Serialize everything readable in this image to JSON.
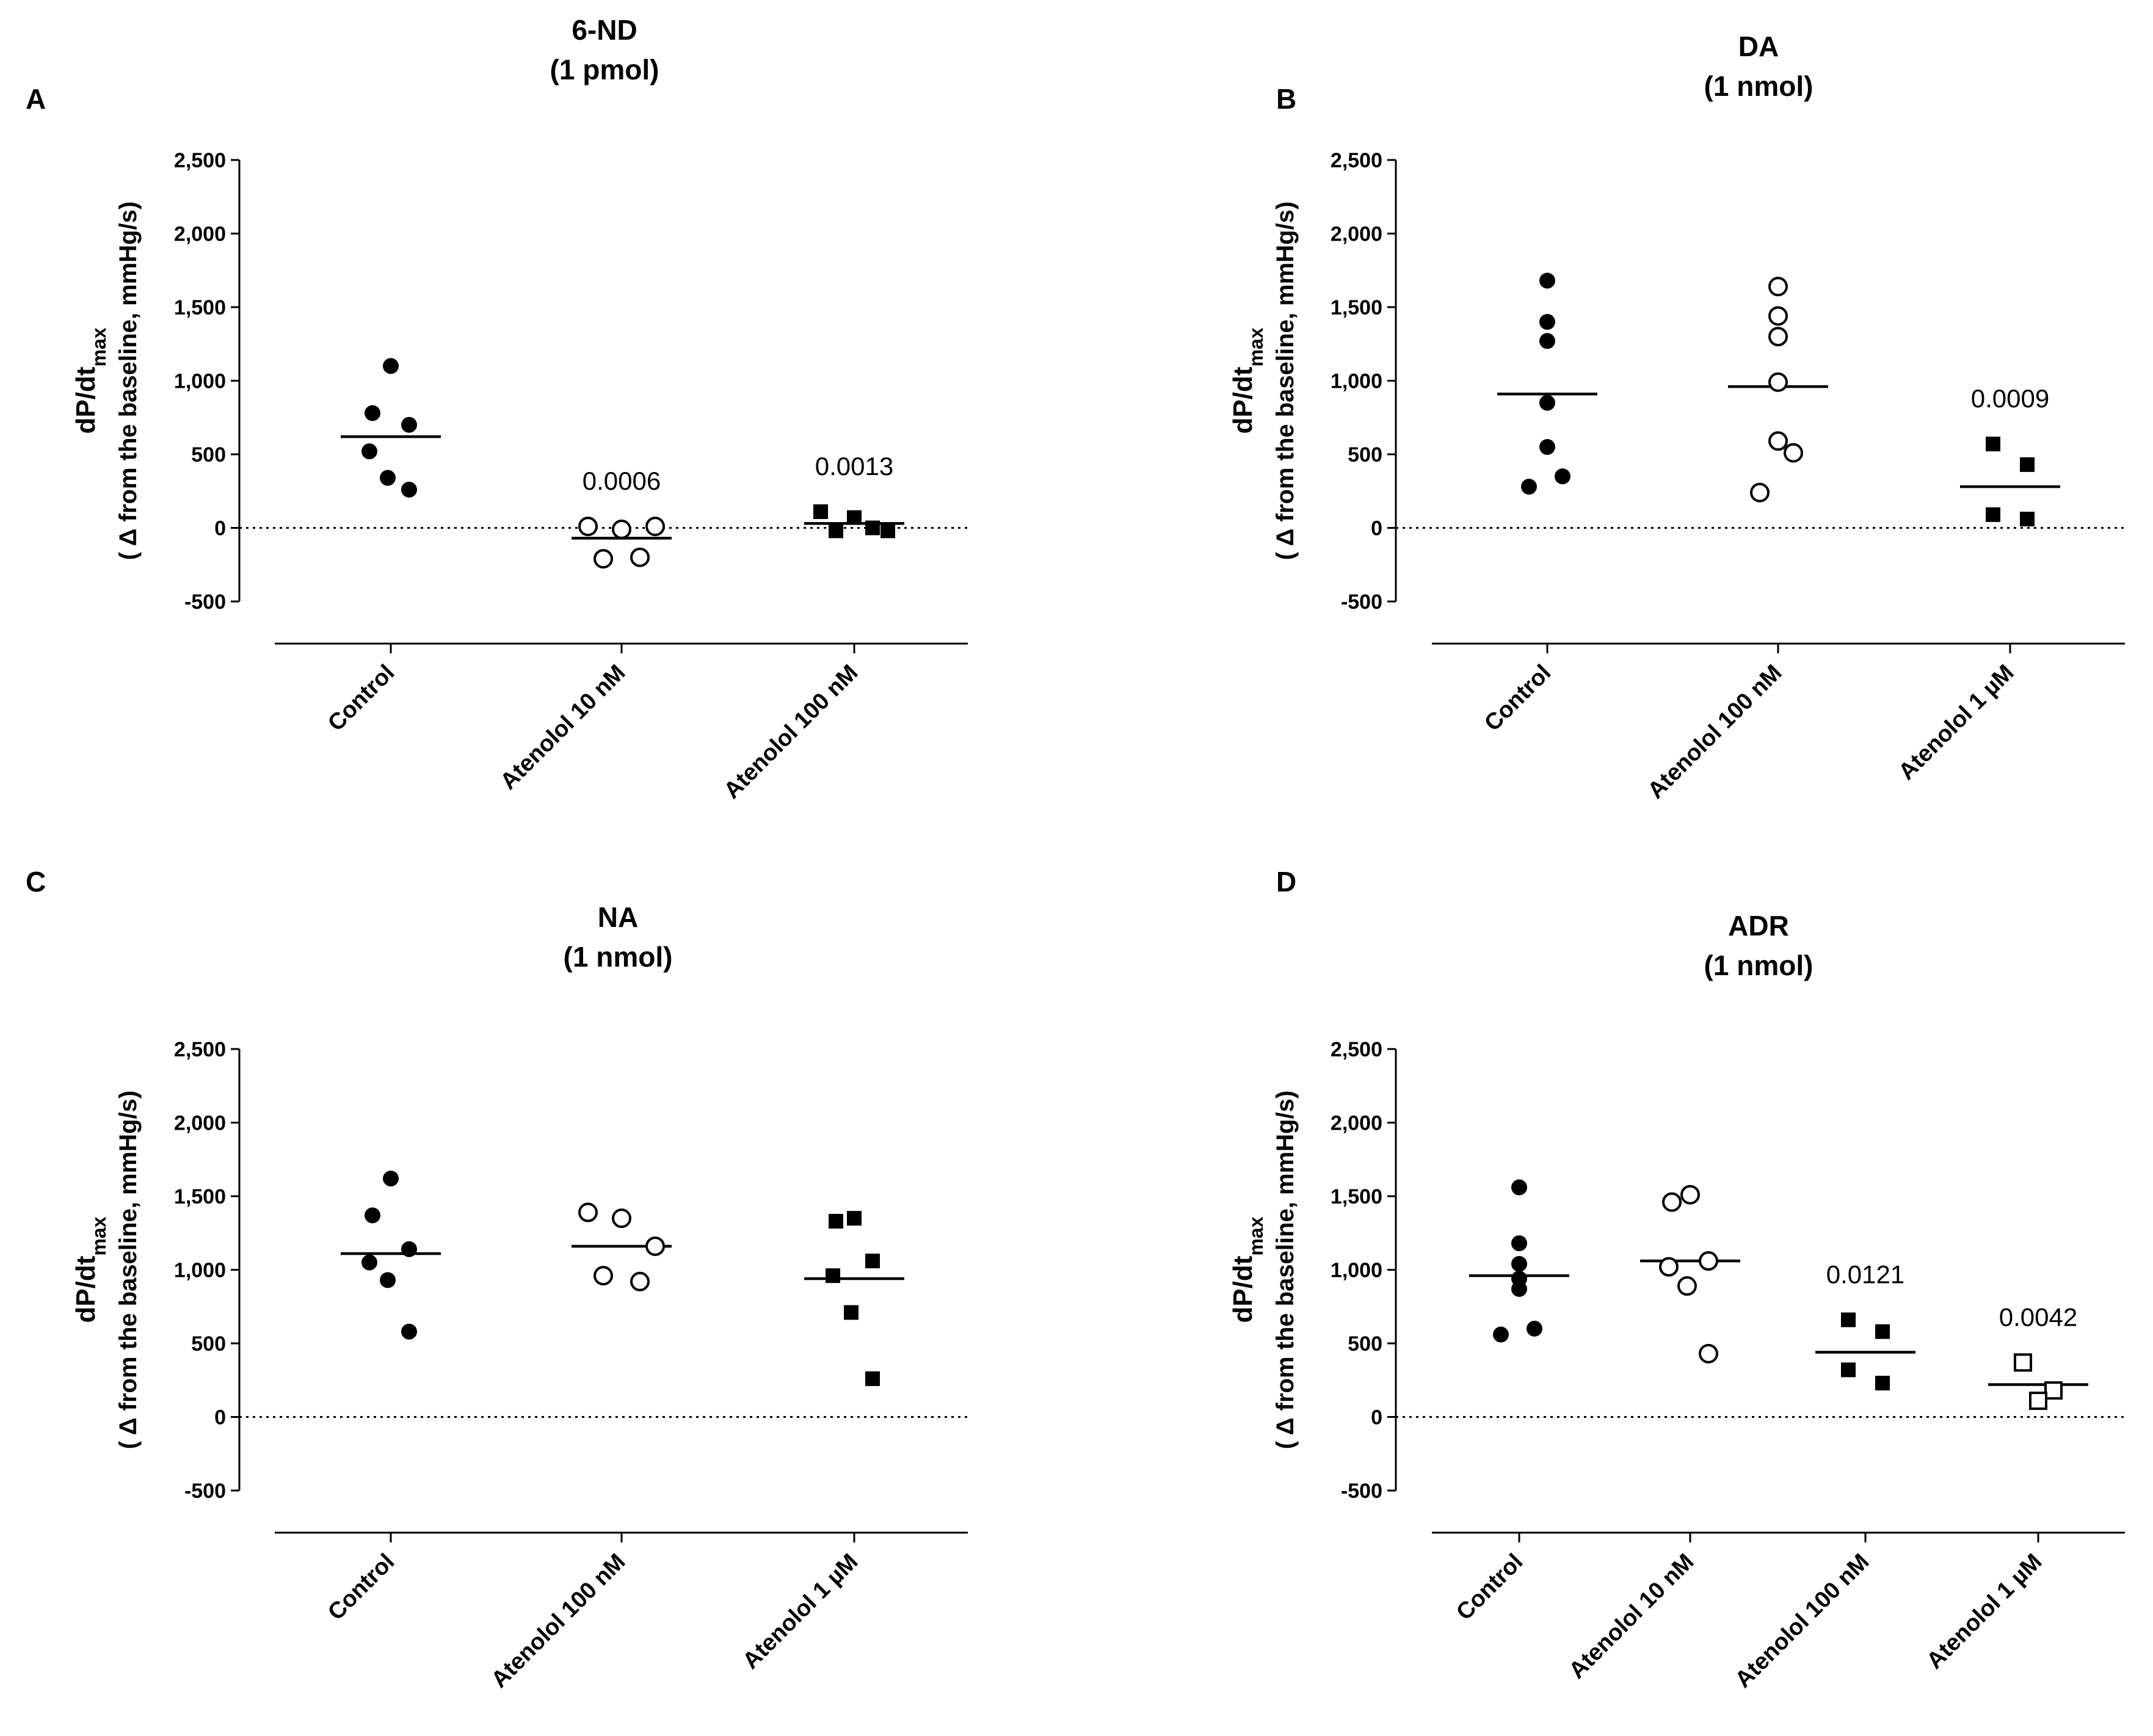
{
  "figure": {
    "background": "#ffffff",
    "marker_color": "#000000"
  },
  "chart_data": [
    {
      "panel": "A",
      "type": "scatter",
      "title": [
        "6-ND",
        "(1 pmol)"
      ],
      "ylabel": {
        "main": "dP/dt",
        "sub": "max",
        "line2": "( Δ from the baseline, mmHg/s)"
      },
      "ylim": [
        -500,
        2500
      ],
      "yticks": [
        -500,
        0,
        500,
        1000,
        1500,
        2000,
        2500
      ],
      "ytick_labels": [
        "-500",
        "0",
        "500",
        "1,000",
        "1,500",
        "2,000",
        "2,500"
      ],
      "reference_line": 0,
      "groups": [
        {
          "name": "Control",
          "marker": "filled-circle",
          "values": [
            1100,
            780,
            700,
            520,
            340,
            260
          ],
          "median": 620
        },
        {
          "name": "Atenolol 10 nM",
          "marker": "open-circle",
          "values": [
            10,
            -10,
            10,
            -210,
            -200
          ],
          "median": -70,
          "annotation": "0.0006"
        },
        {
          "name": "Atenolol 100 nM",
          "marker": "filled-square",
          "values": [
            110,
            70,
            -20,
            -20,
            0
          ],
          "median": 30,
          "annotation": "0.0013"
        }
      ]
    },
    {
      "panel": "B",
      "type": "scatter",
      "title": [
        "DA",
        "(1 nmol)"
      ],
      "ylabel": {
        "main": "dP/dt",
        "sub": "max",
        "line2": "( Δ from the baseline, mmHg/s)"
      },
      "ylim": [
        -500,
        2500
      ],
      "yticks": [
        -500,
        0,
        500,
        1000,
        1500,
        2000,
        2500
      ],
      "ytick_labels": [
        "-500",
        "0",
        "500",
        "1,000",
        "1,500",
        "2,000",
        "2,500"
      ],
      "reference_line": 0,
      "groups": [
        {
          "name": "Control",
          "marker": "filled-circle",
          "values": [
            1680,
            1400,
            1270,
            850,
            550,
            350,
            280
          ],
          "median": 910
        },
        {
          "name": "Atenolol 100 nM",
          "marker": "open-circle",
          "values": [
            1640,
            1440,
            1300,
            990,
            590,
            510,
            240
          ],
          "median": 960
        },
        {
          "name": "Atenolol 1 µM",
          "marker": "filled-square",
          "values": [
            570,
            430,
            90,
            60
          ],
          "median": 280,
          "annotation": "0.0009"
        }
      ]
    },
    {
      "panel": "C",
      "type": "scatter",
      "title": [
        "NA",
        "(1 nmol)"
      ],
      "ylabel": {
        "main": "dP/dt",
        "sub": "max",
        "line2": "( Δ from the baseline, mmHg/s)"
      },
      "ylim": [
        -500,
        2500
      ],
      "yticks": [
        -500,
        0,
        500,
        1000,
        1500,
        2000,
        2500
      ],
      "ytick_labels": [
        "-500",
        "0",
        "500",
        "1,000",
        "1,500",
        "2,000",
        "2,500"
      ],
      "reference_line": 0,
      "groups": [
        {
          "name": "Control",
          "marker": "filled-circle",
          "values": [
            1620,
            1370,
            1140,
            1050,
            930,
            580
          ],
          "median": 1110
        },
        {
          "name": "Atenolol 100 nM",
          "marker": "open-circle",
          "values": [
            1390,
            1350,
            1160,
            960,
            920
          ],
          "median": 1160
        },
        {
          "name": "Atenolol 1 µM",
          "marker": "filled-square",
          "values": [
            1350,
            1330,
            1060,
            960,
            710,
            260
          ],
          "median": 940
        }
      ]
    },
    {
      "panel": "D",
      "type": "scatter",
      "title": [
        "ADR",
        "(1 nmol)"
      ],
      "ylabel": {
        "main": "dP/dt",
        "sub": "max",
        "line2": "( Δ from the baseline, mmHg/s)"
      },
      "ylim": [
        -500,
        2500
      ],
      "yticks": [
        -500,
        0,
        500,
        1000,
        1500,
        2000,
        2500
      ],
      "ytick_labels": [
        "-500",
        "0",
        "500",
        "1,000",
        "1,500",
        "2,000",
        "2,500"
      ],
      "reference_line": 0,
      "groups": [
        {
          "name": "Control",
          "marker": "filled-circle",
          "values": [
            1560,
            1180,
            1040,
            940,
            870,
            600,
            560
          ],
          "median": 960
        },
        {
          "name": "Atenolol 10 nM",
          "marker": "open-circle",
          "values": [
            1510,
            1460,
            1060,
            1020,
            890,
            430
          ],
          "median": 1060
        },
        {
          "name": "Atenolol 100 nM",
          "marker": "filled-square",
          "values": [
            660,
            580,
            320,
            230
          ],
          "median": 440,
          "annotation": "0.0121"
        },
        {
          "name": "Atenolol 1 µM",
          "marker": "open-square",
          "values": [
            370,
            180,
            110
          ],
          "median": 220,
          "annotation": "0.0042"
        }
      ]
    }
  ]
}
